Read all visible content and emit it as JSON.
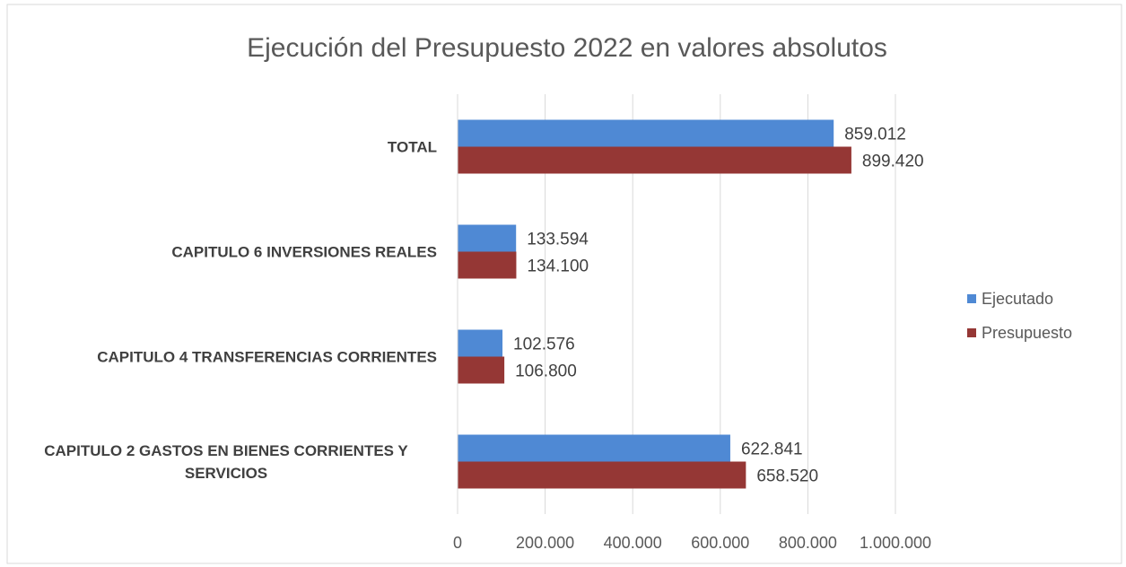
{
  "chart_data": {
    "type": "bar",
    "orientation": "horizontal",
    "title": "Ejecución del Presupuesto 2022 en valores absolutos",
    "categories": [
      "TOTAL",
      "CAPITULO 6 INVERSIONES REALES",
      "CAPITULO 4 TRANSFERENCIAS CORRIENTES",
      "CAPITULO 2 GASTOS EN BIENES CORRIENTES Y SERVICIOS"
    ],
    "series": [
      {
        "name": "Ejecutado",
        "color": "#4f89d4",
        "values": [
          859012,
          133594,
          102576,
          622841
        ],
        "value_labels": [
          "859.012",
          "133.594",
          "102.576",
          "622.841"
        ]
      },
      {
        "name": "Presupuesto",
        "color": "#953735",
        "values": [
          899420,
          134100,
          106800,
          658520
        ],
        "value_labels": [
          "899.420",
          "134.100",
          "106.800",
          "658.520"
        ]
      }
    ],
    "xlim": [
      0,
      1000000
    ],
    "xticks": [
      0,
      {
        "value": 200000,
        "label": "200.000"
      },
      {
        "value": 400000,
        "label": "400.000"
      },
      {
        "value": 600000,
        "label": "600.000"
      },
      {
        "value": 800000,
        "label": "800.000"
      },
      {
        "value": 1000000,
        "label": "1.000.000"
      }
    ],
    "grid": true,
    "legend": "right"
  }
}
